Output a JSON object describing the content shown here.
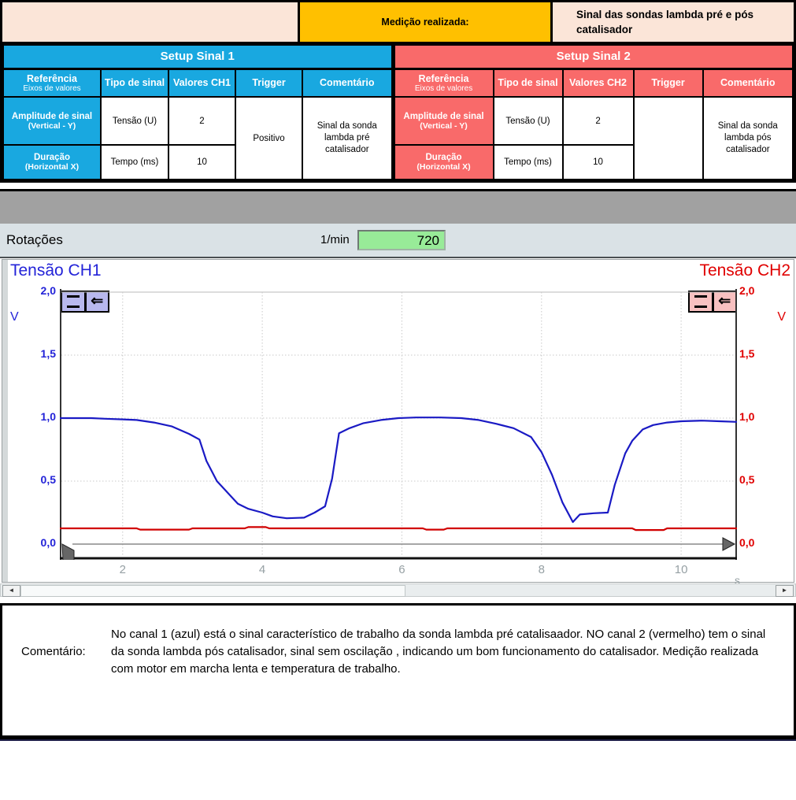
{
  "header": {
    "measurement_label": "Medição realizada:",
    "measurement_value": "Sinal das sondas lambda pré e pós catalisador"
  },
  "setup1": {
    "title": "Setup Sinal 1",
    "columns": {
      "referencia": "Referência",
      "referencia_sub": "Eixos de valores",
      "tipo": "Tipo de sinal",
      "valores": "Valores CH1",
      "trigger": "Trigger",
      "comentario": "Comentário"
    },
    "rows": [
      {
        "ref": "Amplitude de sinal",
        "ref_sub": "(Vertical - Y)",
        "tipo": "Tensão (U)",
        "valor": "2"
      },
      {
        "ref": "Duração",
        "ref_sub": "(Horizontal X)",
        "tipo": "Tempo (ms)",
        "valor": "10"
      }
    ],
    "trigger_value": "Positivo",
    "comment": "Sinal da sonda lambda pré catalisador"
  },
  "setup2": {
    "title": "Setup Sinal 2",
    "columns": {
      "referencia": "Referência",
      "referencia_sub": "Eixos de valores",
      "tipo": "Tipo de sinal",
      "valores": "Valores CH2",
      "trigger": "Trigger",
      "comentario": "Comentário"
    },
    "rows": [
      {
        "ref": "Amplitude de sinal",
        "ref_sub": "(Vertical - Y)",
        "tipo": "Tensão (U)",
        "valor": "2"
      },
      {
        "ref": "Duração",
        "ref_sub": "(Horizontal X)",
        "tipo": "Tempo (ms)",
        "valor": "10"
      }
    ],
    "trigger_value": "",
    "comment": "Sinal da sonda lambda pós catalisador"
  },
  "rotacoes": {
    "label": "Rotações",
    "unit": "1/min",
    "value": "720"
  },
  "chart_data": {
    "type": "line",
    "title_left": "Tensão CH1",
    "title_right": "Tensão CH2",
    "ylabel_left": "V",
    "ylabel_right": "V",
    "xlabel": "s",
    "xlim": [
      1.1,
      10.8
    ],
    "ylim": [
      0,
      2.0
    ],
    "yticks": [
      2.0,
      1.5,
      1.0,
      0.5,
      0.0
    ],
    "ytick_labels": [
      "2,0",
      "1,5",
      "1,0",
      "0,5",
      "0,0"
    ],
    "xticks": [
      2,
      4,
      6,
      8,
      10
    ],
    "grid": true,
    "legend_position": "none",
    "series": [
      {
        "name": "Tensão CH1",
        "color": "#1A1AC4",
        "points": [
          [
            1.1,
            1.0
          ],
          [
            1.55,
            1.0
          ],
          [
            1.75,
            0.995
          ],
          [
            2.0,
            0.99
          ],
          [
            2.2,
            0.985
          ],
          [
            2.45,
            0.965
          ],
          [
            2.7,
            0.935
          ],
          [
            2.95,
            0.875
          ],
          [
            3.1,
            0.83
          ],
          [
            3.2,
            0.66
          ],
          [
            3.35,
            0.5
          ],
          [
            3.5,
            0.41
          ],
          [
            3.65,
            0.32
          ],
          [
            3.8,
            0.28
          ],
          [
            4.0,
            0.25
          ],
          [
            4.15,
            0.22
          ],
          [
            4.35,
            0.205
          ],
          [
            4.6,
            0.21
          ],
          [
            4.75,
            0.25
          ],
          [
            4.9,
            0.3
          ],
          [
            5.0,
            0.52
          ],
          [
            5.1,
            0.88
          ],
          [
            5.25,
            0.92
          ],
          [
            5.45,
            0.96
          ],
          [
            5.7,
            0.985
          ],
          [
            5.95,
            1.0
          ],
          [
            6.2,
            1.005
          ],
          [
            6.55,
            1.005
          ],
          [
            6.85,
            1.0
          ],
          [
            7.1,
            0.985
          ],
          [
            7.35,
            0.955
          ],
          [
            7.6,
            0.92
          ],
          [
            7.85,
            0.85
          ],
          [
            8.0,
            0.73
          ],
          [
            8.15,
            0.55
          ],
          [
            8.3,
            0.33
          ],
          [
            8.45,
            0.175
          ],
          [
            8.55,
            0.235
          ],
          [
            8.75,
            0.245
          ],
          [
            8.95,
            0.25
          ],
          [
            9.05,
            0.47
          ],
          [
            9.2,
            0.72
          ],
          [
            9.3,
            0.82
          ],
          [
            9.45,
            0.91
          ],
          [
            9.6,
            0.945
          ],
          [
            9.8,
            0.965
          ],
          [
            10.0,
            0.975
          ],
          [
            10.3,
            0.98
          ],
          [
            10.55,
            0.975
          ],
          [
            10.8,
            0.97
          ]
        ]
      },
      {
        "name": "Tensão CH2",
        "color": "#D10000",
        "points": [
          [
            1.1,
            0.125
          ],
          [
            2.2,
            0.125
          ],
          [
            2.25,
            0.115
          ],
          [
            2.95,
            0.115
          ],
          [
            3.0,
            0.125
          ],
          [
            3.75,
            0.125
          ],
          [
            3.8,
            0.135
          ],
          [
            4.05,
            0.135
          ],
          [
            4.1,
            0.125
          ],
          [
            6.3,
            0.125
          ],
          [
            6.35,
            0.115
          ],
          [
            6.6,
            0.115
          ],
          [
            6.65,
            0.125
          ],
          [
            9.3,
            0.125
          ],
          [
            9.35,
            0.112
          ],
          [
            9.75,
            0.112
          ],
          [
            9.8,
            0.125
          ],
          [
            10.8,
            0.125
          ]
        ]
      }
    ]
  },
  "comment": {
    "label": "Comentário:",
    "text": "No canal 1 (azul) está o sinal característico de trabalho da sonda lambda pré catalisaador. NO canal 2 (vermelho) tem o sinal da sonda lambda pós catalisador, sinal sem oscilação , indicando um bom funcionamento do catalisador. Medição realizada com motor em marcha lenta e temperatura de trabalho."
  },
  "colors": {
    "setup1_accent": "#19A8E0",
    "setup2_accent": "#F96A6A",
    "measurement_bg": "#FFC000",
    "header_bg": "#FBE5D8",
    "rpm_value_bg": "#98EB98",
    "ch1_color": "#2323D8",
    "ch2_color": "#E00000",
    "gray_band": "#A1A1A1",
    "rot_row_bg": "#DAE2E6"
  }
}
